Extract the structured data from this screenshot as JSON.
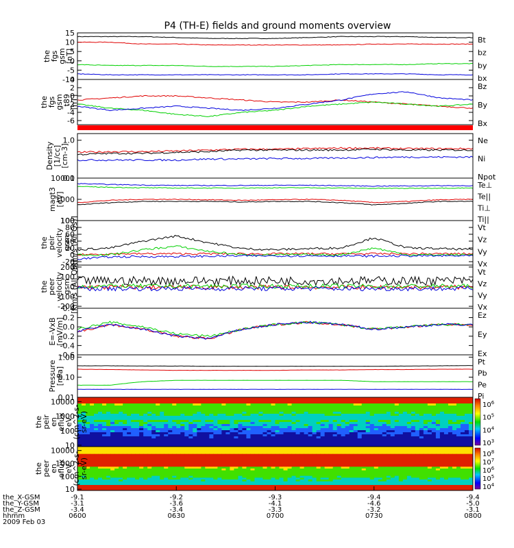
{
  "title": "P4 (TH-E) fields and ground moments overview",
  "colors": {
    "black": "#000000",
    "red": "#e00000",
    "green": "#00d000",
    "blue": "#0000dd"
  },
  "chart_data": [
    {
      "type": "line",
      "ylabel": [
        "the",
        "fgs",
        "gsm",
        "[nT]"
      ],
      "ylim": [
        -10,
        15
      ],
      "ticks": [
        "15",
        "10",
        "5",
        "0",
        "-5",
        "-10"
      ],
      "tickvals": [
        15,
        10,
        5,
        0,
        -5,
        -10
      ],
      "series": [
        {
          "name": "Bt",
          "color": "black",
          "values": [
            13,
            13,
            13,
            12.5,
            12,
            12,
            12,
            12.5,
            13,
            13,
            13,
            12.5,
            12.5
          ]
        },
        {
          "name": "bz",
          "color": "red",
          "values": [
            10,
            10,
            9,
            9,
            8.5,
            8.5,
            8.5,
            8.5,
            8.5,
            9,
            9,
            9,
            9
          ]
        },
        {
          "name": "by",
          "color": "green",
          "values": [
            -2,
            -2.5,
            -2.5,
            -2.5,
            -3,
            -3,
            -3,
            -2.5,
            -2,
            -2,
            -2,
            -1.5,
            -1.5
          ]
        },
        {
          "name": "bx",
          "color": "blue",
          "values": [
            -7,
            -7.5,
            -7.5,
            -7.5,
            -7.5,
            -7.5,
            -7.5,
            -7.5,
            -7,
            -7,
            -7,
            -7.5,
            -7.5
          ]
        }
      ]
    },
    {
      "type": "line",
      "ylabel": [
        "the",
        "fgs",
        "gsm",
        "_t89",
        "[nT]"
      ],
      "ylim": [
        -7,
        4
      ],
      "ticks": [
        "4",
        "2",
        "0",
        "-2",
        "-4",
        "-6"
      ],
      "tickvals": [
        4,
        2,
        0,
        -2,
        -4,
        -6
      ],
      "series": [
        {
          "name": "Bz",
          "color": "red",
          "values": [
            -1,
            -0.5,
            0,
            0,
            -0.5,
            -1,
            -1.5,
            -1.5,
            -1,
            -1.5,
            -2,
            -2.5,
            -3
          ]
        },
        {
          "name": "By",
          "color": "green",
          "values": [
            -2,
            -3,
            -3.5,
            -4.5,
            -5,
            -4,
            -3.5,
            -2.5,
            -2,
            -1.5,
            -2,
            -2.5,
            -2
          ]
        },
        {
          "name": "Bx",
          "color": "blue",
          "values": [
            -2.5,
            -3.5,
            -3,
            -2.5,
            -3,
            -3.5,
            -3,
            -2,
            -1,
            0.5,
            1,
            -0.5,
            -1
          ]
        }
      ]
    },
    {
      "type": "line",
      "ylabel": [
        "Density",
        "[1/cc]",
        "[cm-3]"
      ],
      "ylog": true,
      "ylim": [
        0.1,
        1.5
      ],
      "ticks": [
        "1.0",
        "0.1"
      ],
      "tickvals": [
        1,
        0.1
      ],
      "series": [
        {
          "name": "Ne",
          "color": "red",
          "values": [
            0.48,
            0.5,
            0.5,
            0.52,
            0.55,
            0.58,
            0.58,
            0.6,
            0.62,
            0.62,
            0.6,
            0.6,
            0.6
          ]
        },
        {
          "name": "Ni",
          "color": "black",
          "values": [
            0.42,
            0.45,
            0.45,
            0.48,
            0.5,
            0.55,
            0.55,
            0.55,
            0.55,
            0.58,
            0.55,
            0.55,
            0.55
          ]
        },
        {
          "name": "Npot",
          "color": "blue",
          "values": [
            0.3,
            0.3,
            0.3,
            0.3,
            0.32,
            0.32,
            0.33,
            0.33,
            0.34,
            0.35,
            0.36,
            0.36,
            0.36
          ]
        }
      ]
    },
    {
      "type": "line",
      "ylabel": [
        "magt3",
        "[eV]"
      ],
      "ylog": true,
      "ylim": [
        100,
        10000
      ],
      "ticks": [
        "10000",
        "1000",
        "100"
      ],
      "tickvals": [
        10000,
        1000,
        100
      ],
      "series": [
        {
          "name": "Te⊥",
          "color": "red",
          "values": [
            700,
            900,
            1000,
            1000,
            950,
            900,
            950,
            1000,
            900,
            700,
            800,
            950,
            1000
          ]
        },
        {
          "name": "Te||",
          "color": "black",
          "values": [
            550,
            700,
            800,
            800,
            800,
            750,
            800,
            800,
            700,
            550,
            650,
            800,
            800
          ]
        },
        {
          "name": "Ti⊥",
          "color": "blue",
          "values": [
            5500,
            5000,
            4700,
            4500,
            4500,
            4500,
            4600,
            4600,
            4400,
            4200,
            4300,
            4400,
            4400
          ]
        },
        {
          "name": "Ti||",
          "color": "green",
          "values": [
            4000,
            3700,
            3500,
            3400,
            3400,
            3400,
            3500,
            3500,
            3400,
            3300,
            3300,
            3400,
            3400
          ]
        }
      ]
    },
    {
      "type": "line",
      "ylabel": [
        "the",
        "peir",
        "velocity",
        "gsm",
        "[km/s (All Qs)]"
      ],
      "ylim": [
        -30,
        100
      ],
      "ticks": [
        "100",
        "80",
        "60",
        "40",
        "20",
        "0",
        "-20"
      ],
      "tickvals": [
        100,
        80,
        60,
        40,
        20,
        0,
        -20
      ],
      "series": [
        {
          "name": "Vt",
          "color": "black",
          "values": [
            15,
            20,
            40,
            55,
            35,
            18,
            15,
            18,
            20,
            50,
            20,
            18,
            15
          ]
        },
        {
          "name": "Vz",
          "color": "red",
          "values": [
            0,
            3,
            3,
            3,
            3,
            3,
            3,
            3,
            3,
            3,
            3,
            3,
            3
          ]
        },
        {
          "name": "Vy",
          "color": "green",
          "values": [
            0,
            0,
            15,
            25,
            10,
            0,
            0,
            0,
            0,
            20,
            0,
            0,
            0
          ]
        },
        {
          "name": "Vx",
          "color": "blue",
          "values": [
            -12,
            -6,
            -5,
            -5,
            -4,
            -3,
            -3,
            -3,
            -3,
            -4,
            -3,
            -3,
            -3
          ]
        }
      ]
    },
    {
      "type": "line",
      "ylabel": [
        "the",
        "peer",
        "velocity",
        "gsm",
        "[km/s (All Qs)]"
      ],
      "ylim": [
        -220,
        220
      ],
      "ticks": [
        "200",
        "100",
        "0",
        "-100",
        "-200"
      ],
      "tickvals": [
        200,
        100,
        0,
        -100,
        -200
      ],
      "series": [
        {
          "name": "Vt",
          "color": "black",
          "values": [
            60,
            60,
            60,
            60,
            60,
            60,
            60,
            60,
            60,
            60,
            60,
            60,
            60
          ]
        },
        {
          "name": "Vz",
          "color": "red",
          "values": [
            -5,
            -5,
            -5,
            -5,
            -5,
            -5,
            -5,
            -5,
            -5,
            -5,
            -5,
            -5,
            -5
          ]
        },
        {
          "name": "Vy",
          "color": "green",
          "values": [
            5,
            5,
            5,
            5,
            5,
            5,
            5,
            5,
            5,
            5,
            5,
            5,
            5
          ]
        },
        {
          "name": "Vx",
          "color": "blue",
          "values": [
            -20,
            -20,
            -20,
            -20,
            -20,
            -20,
            -20,
            -20,
            -20,
            -20,
            -20,
            -20,
            -20
          ]
        }
      ]
    },
    {
      "type": "line",
      "ylabel": [
        "E=-VxB",
        "[mV/m]"
      ],
      "ylim": [
        -0.6,
        0.4
      ],
      "ticks": [
        "0.4",
        "0.2",
        "0.0",
        "-0.2",
        "-0.4",
        "-0.6"
      ],
      "tickvals": [
        0.4,
        0.2,
        0,
        -0.2,
        -0.4,
        -0.6
      ],
      "series": [
        {
          "name": "Ez",
          "color": "red",
          "values": [
            -0.1,
            0.05,
            -0.05,
            -0.2,
            -0.25,
            -0.05,
            0.05,
            0.1,
            0.05,
            -0.05,
            0,
            0.05,
            0.05
          ]
        },
        {
          "name": "Ey",
          "color": "green",
          "values": [
            -0.05,
            0.1,
            0,
            -0.15,
            -0.2,
            -0.05,
            0.05,
            0.1,
            0.05,
            -0.05,
            0,
            0.05,
            0.05
          ]
        },
        {
          "name": "Ex",
          "color": "blue",
          "values": [
            -0.1,
            0.05,
            -0.05,
            -0.2,
            -0.25,
            -0.05,
            0.05,
            0.1,
            0.05,
            -0.05,
            0,
            0.05,
            0.05
          ]
        }
      ]
    },
    {
      "type": "line",
      "ylabel": [
        "Pressure",
        "[nPa]"
      ],
      "ylog": true,
      "ylim": [
        0.01,
        1.3
      ],
      "ticks": [
        "1.00",
        "0.10",
        "0.01"
      ],
      "tickvals": [
        1,
        0.1,
        0.01
      ],
      "series": [
        {
          "name": "Pt",
          "color": "black",
          "values": [
            0.37,
            0.37,
            0.36,
            0.36,
            0.35,
            0.35,
            0.35,
            0.35,
            0.35,
            0.35,
            0.36,
            0.37,
            0.38
          ]
        },
        {
          "name": "Pb",
          "color": "red",
          "values": [
            0.25,
            0.24,
            0.23,
            0.22,
            0.22,
            0.22,
            0.22,
            0.23,
            0.23,
            0.24,
            0.24,
            0.25,
            0.25
          ]
        },
        {
          "name": "Pe",
          "color": "green",
          "values": [
            0.04,
            0.04,
            0.06,
            0.07,
            0.07,
            0.07,
            0.07,
            0.07,
            0.07,
            0.06,
            0.06,
            0.06,
            0.06
          ]
        },
        {
          "name": "Pi",
          "color": "blue",
          "values": [
            0.025,
            0.025,
            0.025,
            0.025,
            0.025,
            0.025,
            0.025,
            0.025,
            0.025,
            0.025,
            0.025,
            0.025,
            0.025
          ]
        }
      ]
    },
    {
      "type": "heatmap",
      "ylabel": [
        "the",
        "peir",
        "en",
        "eflux",
        "eV",
        "(cm^2-s-",
        "sr-eV)"
      ],
      "ticks": [
        "10000",
        "1000",
        "100",
        "10"
      ],
      "tickvals": [
        10000,
        1000,
        100,
        10
      ],
      "colorbar": [
        "10^6",
        "10^5",
        "10^4",
        "10^3"
      ]
    },
    {
      "type": "heatmap",
      "ylabel": [
        "the",
        "peer",
        "en",
        "eflux",
        "eV",
        "(cm^2-s-",
        "sr-eV)"
      ],
      "ticks": [
        "10000",
        "1000",
        "100",
        "10"
      ],
      "tickvals": [
        10000,
        1000,
        100,
        10
      ],
      "colorbar": [
        "10^8",
        "10^7",
        "10^6",
        "10^5",
        "10^4"
      ]
    }
  ],
  "xaxis": {
    "rows": [
      {
        "label": "the_X-GSM",
        "values": [
          "-9.1",
          "-9.2",
          "-9.3",
          "-9.4",
          "-9.4"
        ]
      },
      {
        "label": "the_Y-GSM",
        "values": [
          "-3.1",
          "-3.6",
          "-4.1",
          "-4.6",
          "-5.0"
        ]
      },
      {
        "label": "the_Z-GSM",
        "values": [
          "-3.4",
          "-3.4",
          "-3.3",
          "-3.2",
          "-3.1"
        ]
      },
      {
        "label": "hhmm",
        "values": [
          "0600",
          "0630",
          "0700",
          "0730",
          "0800"
        ]
      }
    ],
    "date": "2009 Feb 03"
  }
}
